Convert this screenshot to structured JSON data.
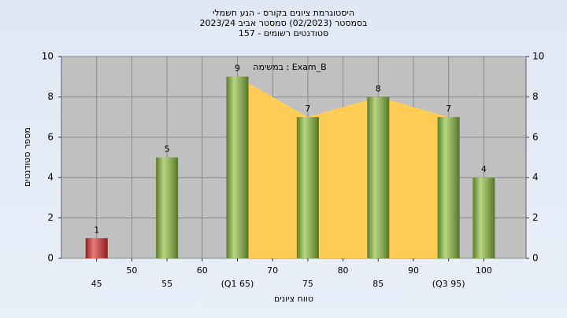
{
  "chart_data": {
    "type": "bar",
    "title": [
      "היסטוגרמת ציונים בקורס - הנע חשמלי",
      "בסמסטר (02/2023) סמסטר אביב 2023/24",
      "סטודנטים רשומים - 157"
    ],
    "annotation": "במשימה : Exam_B",
    "x_label": "טווח ציונים",
    "y_label": "מספר סטודנטים",
    "x": [
      45,
      55,
      65,
      75,
      85,
      95,
      100
    ],
    "values": [
      1,
      5,
      9,
      7,
      8,
      7,
      4
    ],
    "colors": [
      "#e03030",
      "#8fc040",
      "#8fc040",
      "#8fc040",
      "#8fc040",
      "#8fc040",
      "#8fc040"
    ],
    "quartile_area_color": "#ffcc55",
    "xlim": [
      40,
      106
    ],
    "xticks": [
      45,
      50,
      55,
      60,
      {
        "value": 65,
        "label": "(Q1 65)"
      },
      70,
      75,
      80,
      85,
      90,
      {
        "value": 95,
        "label": "(Q3 95)"
      },
      100
    ],
    "ylim": [
      0,
      10
    ],
    "yticks": [
      0,
      2,
      4,
      6,
      8,
      10
    ],
    "y2lim": [
      0,
      10
    ],
    "y2ticks": [
      0,
      2,
      4,
      6,
      8,
      10
    ],
    "grid": true
  }
}
